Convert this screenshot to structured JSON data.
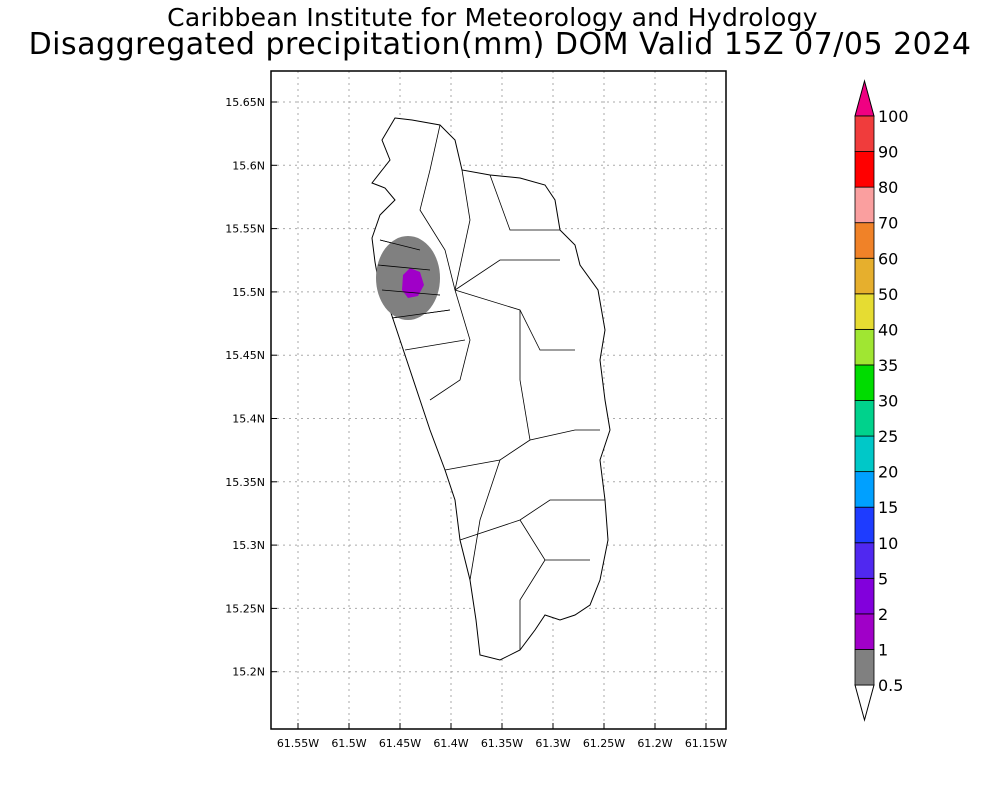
{
  "title": {
    "line1": "Caribbean Institute for Meteorology and Hydrology",
    "line2": "Disaggregated precipitation(mm) DOM Valid 15Z 07/05 2024"
  },
  "map": {
    "lat_ticks": [
      "15.65N",
      "15.6N",
      "15.55N",
      "15.5N",
      "15.45N",
      "15.4N",
      "15.35N",
      "15.3N",
      "15.25N",
      "15.2N"
    ],
    "lon_ticks": [
      "61.55W",
      "61.5W",
      "61.45W",
      "61.4W",
      "61.35W",
      "61.3W",
      "61.25W",
      "61.2W",
      "61.15W"
    ],
    "precip_areas": [
      {
        "category": "0.5-1 mm",
        "color": "#808080"
      },
      {
        "category": "1-2 mm",
        "color": "#a000c8"
      }
    ]
  },
  "colorbar": {
    "levels": [
      "0.5",
      "1",
      "2",
      "5",
      "10",
      "15",
      "20",
      "25",
      "30",
      "35",
      "40",
      "50",
      "60",
      "70",
      "80",
      "90",
      "100"
    ],
    "colors": [
      "#808080",
      "#a000c8",
      "#8200dc",
      "#5028f0",
      "#1e3cff",
      "#00a0ff",
      "#00c8c8",
      "#00d28c",
      "#00dc00",
      "#a0e632",
      "#e6dc32",
      "#e6af2d",
      "#f08228",
      "#fa9f9f",
      "#ff0000",
      "#f03c3c"
    ],
    "under_color": "#ffffff",
    "over_color": "#f00082"
  }
}
